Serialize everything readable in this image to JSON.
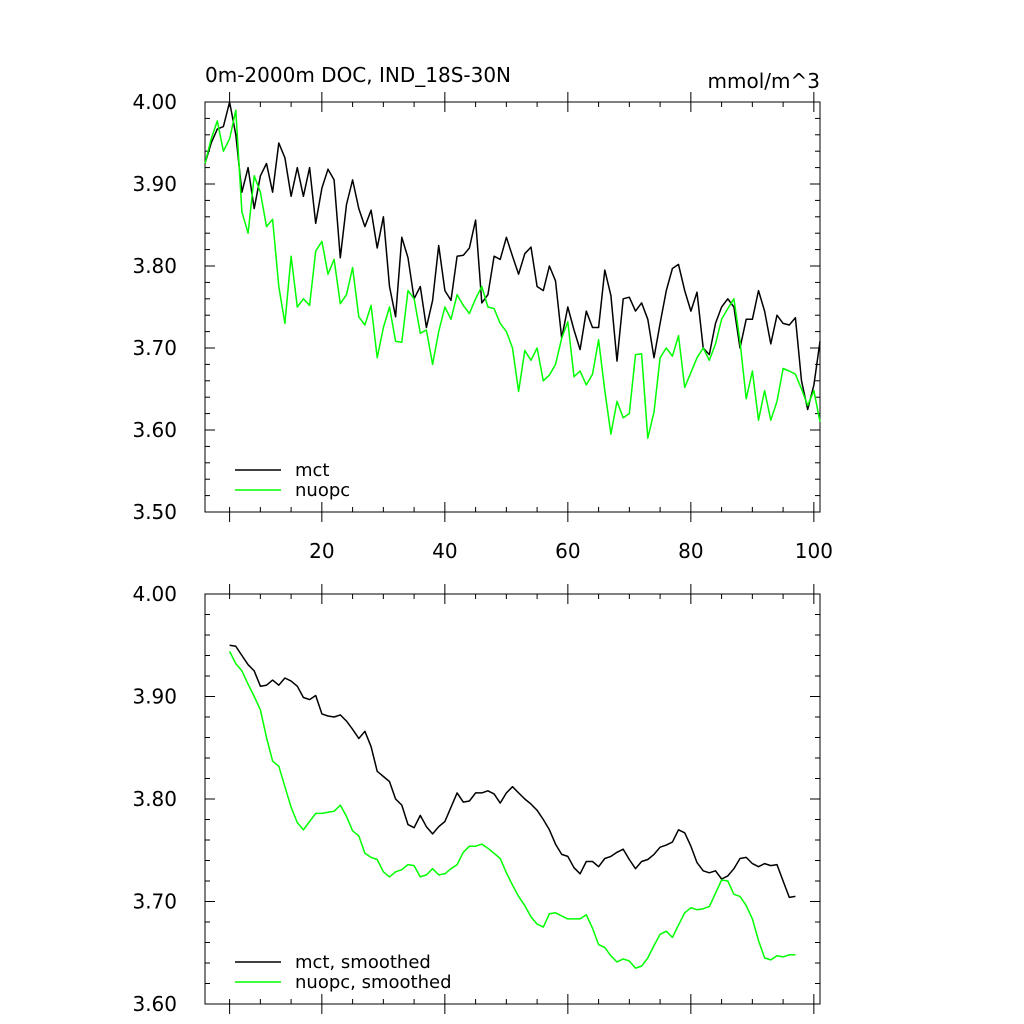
{
  "chart_data": [
    {
      "type": "line",
      "title": "0m-2000m DOC, IND_18S-30N",
      "units": "mmol/m^3",
      "xlabel": "",
      "ylabel": "",
      "xlim": [
        1,
        101
      ],
      "ylim": [
        3.5,
        4.0
      ],
      "xticks": [
        20,
        40,
        60,
        80,
        100
      ],
      "yticks": [
        3.5,
        3.6,
        3.7,
        3.8,
        3.9,
        4.0
      ],
      "ytick_labels": [
        "3.50",
        "3.60",
        "3.70",
        "3.80",
        "3.90",
        "4.00"
      ],
      "xtick_labels": [
        "20",
        "40",
        "60",
        "80",
        "100"
      ],
      "legend": "bottom-left",
      "series": [
        {
          "name": "mct",
          "color": "#000000",
          "x": [
            1,
            2,
            3,
            4,
            5,
            6,
            7,
            8,
            9,
            10,
            11,
            12,
            13,
            14,
            15,
            16,
            17,
            18,
            19,
            20,
            21,
            22,
            23,
            24,
            25,
            26,
            27,
            28,
            29,
            30,
            31,
            32,
            33,
            34,
            35,
            36,
            37,
            38,
            39,
            40,
            41,
            42,
            43,
            44,
            45,
            46,
            47,
            48,
            49,
            50,
            51,
            52,
            53,
            54,
            55,
            56,
            57,
            58,
            59,
            60,
            61,
            62,
            63,
            64,
            65,
            66,
            67,
            68,
            69,
            70,
            71,
            72,
            73,
            74,
            75,
            76,
            77,
            78,
            79,
            80,
            81,
            82,
            83,
            84,
            85,
            86,
            87,
            88,
            89,
            90,
            91,
            92,
            93,
            94,
            95,
            96,
            97,
            98,
            99,
            100,
            101
          ],
          "values": [
            3.925,
            3.95,
            3.967,
            3.97,
            4.0,
            3.96,
            3.89,
            3.92,
            3.87,
            3.91,
            3.925,
            3.89,
            3.95,
            3.932,
            3.885,
            3.92,
            3.885,
            3.92,
            3.852,
            3.895,
            3.918,
            3.905,
            3.81,
            3.875,
            3.905,
            3.87,
            3.848,
            3.868,
            3.822,
            3.86,
            3.775,
            3.738,
            3.835,
            3.81,
            3.76,
            3.775,
            3.725,
            3.758,
            3.825,
            3.77,
            3.758,
            3.812,
            3.813,
            3.822,
            3.856,
            3.755,
            3.765,
            3.812,
            3.808,
            3.835,
            3.812,
            3.79,
            3.815,
            3.823,
            3.775,
            3.77,
            3.8,
            3.782,
            3.712,
            3.75,
            3.722,
            3.698,
            3.745,
            3.725,
            3.725,
            3.795,
            3.764,
            3.684,
            3.76,
            3.762,
            3.745,
            3.755,
            3.735,
            3.688,
            3.73,
            3.77,
            3.797,
            3.802,
            3.77,
            3.745,
            3.768,
            3.7,
            3.692,
            3.73,
            3.75,
            3.76,
            3.75,
            3.7,
            3.735,
            3.735,
            3.77,
            3.745,
            3.705,
            3.74,
            3.73,
            3.728,
            3.737,
            3.66,
            3.625,
            3.655,
            3.708
          ]
        },
        {
          "name": "nuopc",
          "color": "#00ff00",
          "x": [
            1,
            2,
            3,
            4,
            5,
            6,
            7,
            8,
            9,
            10,
            11,
            12,
            13,
            14,
            15,
            16,
            17,
            18,
            19,
            20,
            21,
            22,
            23,
            24,
            25,
            26,
            27,
            28,
            29,
            30,
            31,
            32,
            33,
            34,
            35,
            36,
            37,
            38,
            39,
            40,
            41,
            42,
            43,
            44,
            45,
            46,
            47,
            48,
            49,
            50,
            51,
            52,
            53,
            54,
            55,
            56,
            57,
            58,
            59,
            60,
            61,
            62,
            63,
            64,
            65,
            66,
            67,
            68,
            69,
            70,
            71,
            72,
            73,
            74,
            75,
            76,
            77,
            78,
            79,
            80,
            81,
            82,
            83,
            84,
            85,
            86,
            87,
            88,
            89,
            90,
            91,
            92,
            93,
            94,
            95,
            96,
            97,
            98,
            99,
            100,
            101
          ],
          "values": [
            3.925,
            3.955,
            3.977,
            3.94,
            3.955,
            3.99,
            3.866,
            3.84,
            3.91,
            3.89,
            3.848,
            3.857,
            3.775,
            3.73,
            3.812,
            3.75,
            3.76,
            3.752,
            3.818,
            3.83,
            3.79,
            3.808,
            3.754,
            3.765,
            3.798,
            3.738,
            3.728,
            3.752,
            3.688,
            3.725,
            3.75,
            3.708,
            3.707,
            3.77,
            3.76,
            3.718,
            3.722,
            3.68,
            3.72,
            3.75,
            3.735,
            3.765,
            3.752,
            3.742,
            3.76,
            3.775,
            3.75,
            3.748,
            3.73,
            3.72,
            3.7,
            3.647,
            3.697,
            3.685,
            3.7,
            3.66,
            3.667,
            3.68,
            3.712,
            3.732,
            3.665,
            3.672,
            3.655,
            3.668,
            3.71,
            3.648,
            3.595,
            3.635,
            3.615,
            3.62,
            3.692,
            3.693,
            3.59,
            3.622,
            3.688,
            3.7,
            3.69,
            3.715,
            3.652,
            3.67,
            3.688,
            3.7,
            3.685,
            3.705,
            3.735,
            3.748,
            3.76,
            3.708,
            3.638,
            3.672,
            3.612,
            3.648,
            3.612,
            3.635,
            3.675,
            3.672,
            3.668,
            3.65,
            3.63,
            3.648,
            3.61
          ]
        }
      ]
    },
    {
      "type": "line",
      "title": "",
      "xlabel": "",
      "ylabel": "",
      "xlim": [
        1,
        101
      ],
      "ylim": [
        3.6,
        4.0
      ],
      "xticks": [
        20,
        40,
        60,
        80,
        100
      ],
      "yticks": [
        3.6,
        3.7,
        3.8,
        3.9,
        4.0
      ],
      "ytick_labels": [
        "3.60",
        "3.70",
        "3.80",
        "3.90",
        "4.00"
      ],
      "xtick_labels": [],
      "legend": "bottom-left",
      "series": [
        {
          "name": "mct, smoothed",
          "color": "#000000",
          "x": [
            5,
            6,
            7,
            8,
            9,
            10,
            11,
            12,
            13,
            14,
            15,
            16,
            17,
            18,
            19,
            20,
            21,
            22,
            23,
            24,
            25,
            26,
            27,
            28,
            29,
            30,
            31,
            32,
            33,
            34,
            35,
            36,
            37,
            38,
            39,
            40,
            41,
            42,
            43,
            44,
            45,
            46,
            47,
            48,
            49,
            50,
            51,
            52,
            53,
            54,
            55,
            56,
            57,
            58,
            59,
            60,
            61,
            62,
            63,
            64,
            65,
            66,
            67,
            68,
            69,
            70,
            71,
            72,
            73,
            74,
            75,
            76,
            77,
            78,
            79,
            80,
            81,
            82,
            83,
            84,
            85,
            86,
            87,
            88,
            89,
            90,
            91,
            92,
            93,
            94,
            95,
            96,
            97
          ],
          "values": [
            3.95,
            3.949,
            3.94,
            3.931,
            3.925,
            3.91,
            3.911,
            3.916,
            3.911,
            3.918,
            3.915,
            3.91,
            3.899,
            3.897,
            3.901,
            3.883,
            3.881,
            3.88,
            3.882,
            3.876,
            3.868,
            3.859,
            3.866,
            3.851,
            3.827,
            3.822,
            3.817,
            3.8,
            3.794,
            3.775,
            3.772,
            3.784,
            3.773,
            3.766,
            3.773,
            3.778,
            3.792,
            3.806,
            3.797,
            3.798,
            3.806,
            3.806,
            3.808,
            3.805,
            3.796,
            3.806,
            3.812,
            3.806,
            3.8,
            3.795,
            3.789,
            3.78,
            3.77,
            3.756,
            3.746,
            3.744,
            3.733,
            3.727,
            3.739,
            3.739,
            3.734,
            3.742,
            3.744,
            3.748,
            3.751,
            3.741,
            3.732,
            3.739,
            3.741,
            3.746,
            3.753,
            3.755,
            3.758,
            3.77,
            3.767,
            3.754,
            3.738,
            3.73,
            3.728,
            3.73,
            3.722,
            3.725,
            3.732,
            3.742,
            3.743,
            3.737,
            3.734,
            3.737,
            3.735,
            3.736,
            3.72,
            3.704,
            3.705
          ]
        },
        {
          "name": "nuopc, smoothed",
          "color": "#00ff00",
          "x": [
            5,
            6,
            7,
            8,
            9,
            10,
            11,
            12,
            13,
            14,
            15,
            16,
            17,
            18,
            19,
            20,
            21,
            22,
            23,
            24,
            25,
            26,
            27,
            28,
            29,
            30,
            31,
            32,
            33,
            34,
            35,
            36,
            37,
            38,
            39,
            40,
            41,
            42,
            43,
            44,
            45,
            46,
            47,
            48,
            49,
            50,
            51,
            52,
            53,
            54,
            55,
            56,
            57,
            58,
            59,
            60,
            61,
            62,
            63,
            64,
            65,
            66,
            67,
            68,
            69,
            70,
            71,
            72,
            73,
            74,
            75,
            76,
            77,
            78,
            79,
            80,
            81,
            82,
            83,
            84,
            85,
            86,
            87,
            88,
            89,
            90,
            91,
            92,
            93,
            94,
            95,
            96,
            97
          ],
          "values": [
            3.944,
            3.932,
            3.925,
            3.912,
            3.9,
            3.887,
            3.86,
            3.837,
            3.832,
            3.812,
            3.792,
            3.777,
            3.77,
            3.778,
            3.786,
            3.786,
            3.787,
            3.788,
            3.794,
            3.783,
            3.769,
            3.764,
            3.747,
            3.743,
            3.741,
            3.729,
            3.724,
            3.729,
            3.731,
            3.736,
            3.735,
            3.724,
            3.726,
            3.732,
            3.726,
            3.727,
            3.732,
            3.736,
            3.748,
            3.754,
            3.754,
            3.756,
            3.752,
            3.747,
            3.742,
            3.728,
            3.716,
            3.705,
            3.696,
            3.685,
            3.678,
            3.675,
            3.688,
            3.689,
            3.686,
            3.683,
            3.683,
            3.683,
            3.687,
            3.674,
            3.658,
            3.655,
            3.647,
            3.641,
            3.644,
            3.642,
            3.635,
            3.637,
            3.645,
            3.657,
            3.668,
            3.671,
            3.665,
            3.677,
            3.689,
            3.694,
            3.692,
            3.693,
            3.695,
            3.708,
            3.721,
            3.72,
            3.707,
            3.705,
            3.696,
            3.683,
            3.662,
            3.645,
            3.643,
            3.647,
            3.646,
            3.648,
            3.648
          ]
        }
      ]
    }
  ]
}
